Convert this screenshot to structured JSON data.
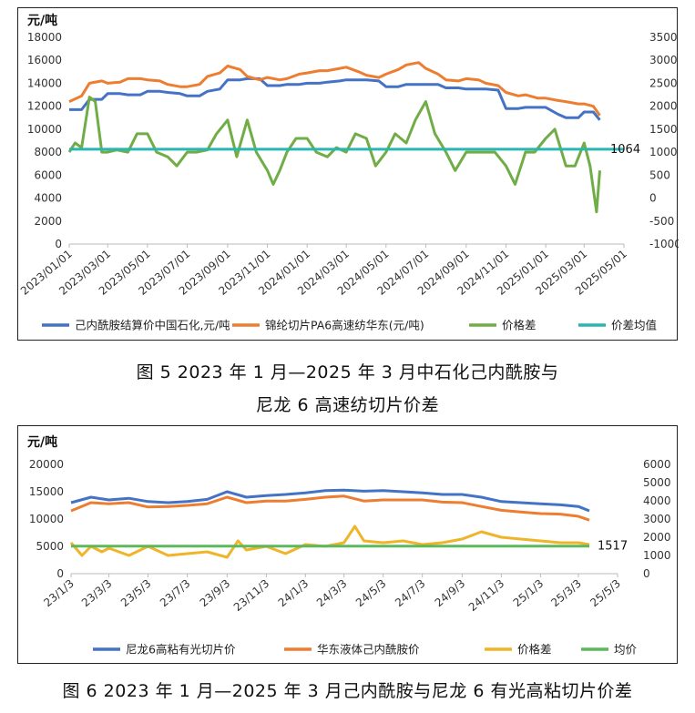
{
  "chart_data": [
    {
      "type": "line",
      "unit_label": "元/吨",
      "caption_line1": "图 5  2023 年 1 月—2025 年 3 月中石化己内酰胺与",
      "caption_line2": "尼龙 6 高速纺切片价差",
      "left_axis": {
        "ylim": [
          0,
          18000
        ],
        "ticks": [
          "0",
          "2000",
          "4000",
          "6000",
          "8000",
          "10000",
          "12000",
          "14000",
          "16000",
          "18000"
        ]
      },
      "right_axis": {
        "ylim": [
          -1000,
          3500
        ],
        "ticks": [
          "-1000",
          "-500",
          "0",
          "500",
          "1000",
          "1500",
          "2000",
          "2500",
          "3000",
          "3500"
        ]
      },
      "x_ticks": [
        "2023/01/01",
        "2023/03/01",
        "2023/05/01",
        "2023/07/01",
        "2023/09/01",
        "2023/11/01",
        "2024/01/01",
        "2024/03/01",
        "2024/05/01",
        "2024/07/01",
        "2024/09/01",
        "2024/11/01",
        "2025/01/01",
        "2025/03/01",
        "2025/05/01"
      ],
      "avg_label": "1064",
      "series": [
        {
          "name": "己内酰胺结算价中国石化,元/吨",
          "axis": "left",
          "color": "#4472c4",
          "x": [
            "2023/01/01",
            "2023/01/20",
            "2023/02/01",
            "2023/02/20",
            "2023/03/01",
            "2023/03/20",
            "2023/04/01",
            "2023/04/20",
            "2023/05/01",
            "2023/05/20",
            "2023/06/01",
            "2023/06/20",
            "2023/07/01",
            "2023/07/20",
            "2023/08/01",
            "2023/08/20",
            "2023/09/01",
            "2023/09/20",
            "2023/10/01",
            "2023/10/20",
            "2023/11/01",
            "2023/11/20",
            "2023/12/01",
            "2023/12/20",
            "2024/01/01",
            "2024/01/20",
            "2024/02/01",
            "2024/02/20",
            "2024/03/01",
            "2024/03/20",
            "2024/04/01",
            "2024/04/20",
            "2024/05/01",
            "2024/05/20",
            "2024/06/01",
            "2024/06/20",
            "2024/07/01",
            "2024/07/20",
            "2024/08/01",
            "2024/08/20",
            "2024/09/01",
            "2024/09/20",
            "2024/10/01",
            "2024/10/20",
            "2024/11/01",
            "2024/11/20",
            "2024/12/01",
            "2024/12/20",
            "2025/01/01",
            "2025/01/20",
            "2025/02/01",
            "2025/02/20",
            "2025/03/01",
            "2025/03/15",
            "2025/03/25"
          ],
          "values": [
            11700,
            11700,
            12600,
            12600,
            13100,
            13100,
            13000,
            13000,
            13300,
            13300,
            13200,
            13100,
            12900,
            12900,
            13300,
            13500,
            14300,
            14300,
            14400,
            14400,
            13800,
            13800,
            13900,
            13900,
            14000,
            14000,
            14100,
            14200,
            14300,
            14300,
            14300,
            14200,
            13700,
            13700,
            13900,
            13900,
            13900,
            13900,
            13600,
            13600,
            13500,
            13500,
            13500,
            13400,
            11800,
            11800,
            11900,
            11900,
            11900,
            11300,
            11000,
            11000,
            11500,
            11500,
            10800
          ]
        },
        {
          "name": "锦纶切片PA6高速纺华东(元/吨)",
          "axis": "left",
          "color": "#ed7d31",
          "x": [
            "2023/01/01",
            "2023/01/20",
            "2023/02/01",
            "2023/02/20",
            "2023/03/01",
            "2023/03/20",
            "2023/04/01",
            "2023/04/20",
            "2023/05/01",
            "2023/05/20",
            "2023/06/01",
            "2023/06/20",
            "2023/07/01",
            "2023/07/20",
            "2023/08/01",
            "2023/08/20",
            "2023/09/01",
            "2023/09/20",
            "2023/10/01",
            "2023/10/20",
            "2023/11/01",
            "2023/11/20",
            "2023/12/01",
            "2023/12/20",
            "2024/01/01",
            "2024/01/20",
            "2024/02/01",
            "2024/02/20",
            "2024/03/01",
            "2024/03/20",
            "2024/04/01",
            "2024/04/20",
            "2024/05/01",
            "2024/05/20",
            "2024/06/01",
            "2024/06/20",
            "2024/07/01",
            "2024/07/20",
            "2024/08/01",
            "2024/08/20",
            "2024/09/01",
            "2024/09/20",
            "2024/10/01",
            "2024/10/20",
            "2024/11/01",
            "2024/11/20",
            "2024/12/01",
            "2024/12/20",
            "2025/01/01",
            "2025/01/20",
            "2025/02/01",
            "2025/02/20",
            "2025/03/01",
            "2025/03/15",
            "2025/03/25"
          ],
          "values": [
            12400,
            12900,
            14000,
            14200,
            14000,
            14100,
            14400,
            14400,
            14300,
            14200,
            13900,
            13700,
            13700,
            13900,
            14600,
            14900,
            15500,
            15200,
            14600,
            14300,
            14500,
            14300,
            14400,
            14800,
            14900,
            15100,
            15100,
            15300,
            15400,
            15000,
            14700,
            14500,
            14800,
            15200,
            15600,
            15800,
            15300,
            14800,
            14300,
            14200,
            14400,
            14300,
            14000,
            13800,
            13200,
            12900,
            13000,
            12700,
            12700,
            12500,
            12400,
            12200,
            12200,
            12000,
            11200
          ]
        },
        {
          "name": "价格差",
          "axis": "right",
          "color": "#70ad47",
          "x": [
            "2023/01/01",
            "2023/01/10",
            "2023/01/20",
            "2023/02/01",
            "2023/02/10",
            "2023/02/20",
            "2023/03/01",
            "2023/03/15",
            "2023/04/01",
            "2023/04/15",
            "2023/05/01",
            "2023/05/15",
            "2023/06/01",
            "2023/06/15",
            "2023/07/01",
            "2023/07/15",
            "2023/08/01",
            "2023/08/15",
            "2023/09/01",
            "2023/09/15",
            "2023/10/01",
            "2023/10/15",
            "2023/11/01",
            "2023/11/10",
            "2023/11/20",
            "2023/12/01",
            "2023/12/15",
            "2024/01/01",
            "2024/01/15",
            "2024/02/01",
            "2024/02/15",
            "2024/03/01",
            "2024/03/15",
            "2024/04/01",
            "2024/04/15",
            "2024/05/01",
            "2024/05/15",
            "2024/06/01",
            "2024/06/15",
            "2024/07/01",
            "2024/07/15",
            "2024/08/01",
            "2024/08/15",
            "2024/09/01",
            "2024/09/15",
            "2024/10/01",
            "2024/10/15",
            "2024/11/01",
            "2024/11/15",
            "2024/12/01",
            "2024/12/15",
            "2025/01/01",
            "2025/01/15",
            "2025/02/01",
            "2025/02/15",
            "2025/03/01",
            "2025/03/10",
            "2025/03/20",
            "2025/03/25"
          ],
          "values": [
            1000,
            1200,
            1100,
            2200,
            2100,
            1000,
            1000,
            1050,
            1000,
            1400,
            1400,
            1000,
            900,
            700,
            1000,
            1000,
            1050,
            1400,
            1700,
            900,
            1700,
            1000,
            600,
            300,
            600,
            1000,
            1300,
            1300,
            1000,
            900,
            1100,
            1000,
            1400,
            1300,
            700,
            1000,
            1400,
            1200,
            1700,
            2100,
            1400,
            1000,
            600,
            1000,
            1000,
            1000,
            1000,
            700,
            300,
            1000,
            1000,
            1300,
            1500,
            700,
            700,
            1200,
            700,
            -300,
            600
          ]
        },
        {
          "name": "价差均值",
          "axis": "right",
          "color": "#2bb5b0",
          "x": [
            "2023/01/01",
            "2025/05/01"
          ],
          "values": [
            1064,
            1064
          ]
        }
      ]
    },
    {
      "type": "line",
      "unit_label": "元/吨",
      "caption": "图 6  2023 年 1 月—2025 年 3 月己内酰胺与尼龙 6 有光高粘切片价差",
      "left_axis": {
        "ylim": [
          0,
          20000
        ],
        "ticks": [
          "0",
          "5000",
          "10000",
          "15000",
          "20000"
        ]
      },
      "right_axis": {
        "ylim": [
          0,
          6000
        ],
        "ticks": [
          "0",
          "1000",
          "2000",
          "3000",
          "4000",
          "5000",
          "6000"
        ]
      },
      "x_ticks": [
        "23/1/3",
        "23/3/3",
        "23/5/3",
        "23/7/3",
        "23/9/3",
        "23/11/3",
        "24/1/3",
        "24/3/3",
        "24/5/3",
        "24/7/3",
        "24/9/3",
        "24/11/3",
        "25/1/3",
        "25/3/3",
        "25/5/3"
      ],
      "avg_label": "1517",
      "series": [
        {
          "name": "尼龙6高粘有光切片价",
          "axis": "left",
          "color": "#4472c4",
          "x": [
            "23/1/3",
            "23/2/3",
            "23/3/3",
            "23/4/3",
            "23/5/3",
            "23/6/3",
            "23/7/3",
            "23/8/3",
            "23/9/3",
            "23/10/3",
            "23/11/3",
            "23/12/3",
            "24/1/3",
            "24/2/3",
            "24/3/3",
            "24/4/3",
            "24/5/3",
            "24/6/3",
            "24/7/3",
            "24/8/3",
            "24/9/3",
            "24/10/3",
            "24/11/3",
            "24/12/3",
            "25/1/3",
            "25/2/3",
            "25/3/3",
            "25/3/20"
          ],
          "values": [
            13000,
            14000,
            13500,
            13800,
            13200,
            13000,
            13200,
            13600,
            15000,
            14000,
            14300,
            14500,
            14800,
            15200,
            15300,
            15100,
            15200,
            15000,
            14800,
            14500,
            14500,
            14000,
            13200,
            13000,
            12800,
            12600,
            12300,
            11500
          ]
        },
        {
          "name": "华东液体己内酰胺价",
          "axis": "left",
          "color": "#ed7d31",
          "x": [
            "23/1/3",
            "23/2/3",
            "23/3/3",
            "23/4/3",
            "23/5/3",
            "23/6/3",
            "23/7/3",
            "23/8/3",
            "23/9/3",
            "23/10/3",
            "23/11/3",
            "23/12/3",
            "24/1/3",
            "24/2/3",
            "24/3/3",
            "24/4/3",
            "24/5/3",
            "24/6/3",
            "24/7/3",
            "24/8/3",
            "24/9/3",
            "24/10/3",
            "24/11/3",
            "24/12/3",
            "25/1/3",
            "25/2/3",
            "25/3/3",
            "25/3/20"
          ],
          "values": [
            11500,
            13000,
            12800,
            13000,
            12200,
            12300,
            12500,
            12800,
            14000,
            13000,
            13300,
            13300,
            13600,
            14000,
            14200,
            13300,
            13500,
            13500,
            13500,
            13100,
            13000,
            12300,
            11600,
            11300,
            11000,
            10900,
            10500,
            9800
          ]
        },
        {
          "name": "价格差",
          "axis": "right",
          "color": "#f0b429",
          "x": [
            "23/1/3",
            "23/1/20",
            "23/2/3",
            "23/2/20",
            "23/3/3",
            "23/4/3",
            "23/5/3",
            "23/6/3",
            "23/7/3",
            "23/8/3",
            "23/9/3",
            "23/9/20",
            "23/10/3",
            "23/11/3",
            "23/12/3",
            "24/1/3",
            "24/2/3",
            "24/3/3",
            "24/3/20",
            "24/4/3",
            "24/5/3",
            "24/6/3",
            "24/7/3",
            "24/8/3",
            "24/9/3",
            "24/10/3",
            "24/11/3",
            "24/12/3",
            "25/1/3",
            "25/2/3",
            "25/3/3",
            "25/3/20"
          ],
          "values": [
            1700,
            1000,
            1500,
            1200,
            1400,
            1000,
            1500,
            1000,
            1100,
            1200,
            900,
            1800,
            1300,
            1500,
            1100,
            1600,
            1500,
            1700,
            2600,
            1800,
            1700,
            1800,
            1600,
            1700,
            1900,
            2300,
            2000,
            1900,
            1800,
            1700,
            1700,
            1600
          ]
        },
        {
          "name": "均价",
          "axis": "right",
          "color": "#5cb85c",
          "x": [
            "23/1/3",
            "25/3/20"
          ],
          "values": [
            1517,
            1517
          ]
        }
      ]
    }
  ]
}
